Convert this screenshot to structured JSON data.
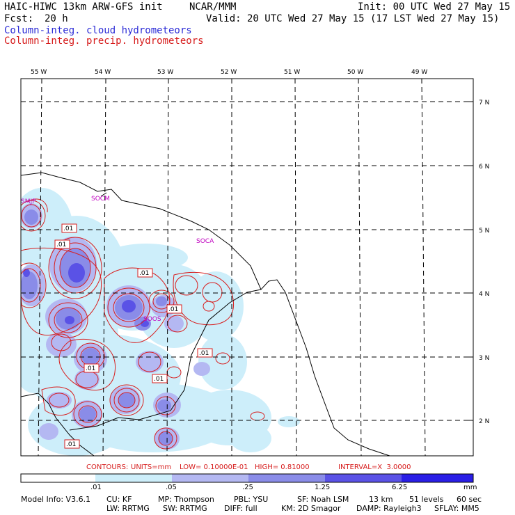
{
  "header": {
    "title_left": "HAIC-HIWC 13km ARW-GFS init",
    "org": "NCAR/MMM",
    "init": "Init: 00 UTC Wed 27 May 15",
    "fcst_label": "Fcst:",
    "fcst_value": "20 h",
    "valid": "Valid: 20 UTC Wed 27 May 15 (17 LST Wed 27 May 15)",
    "field1": "Column-integ. cloud hydrometeors",
    "field2": "Column-integ. precip. hydrometeors"
  },
  "map": {
    "lon_labels": [
      "55 W",
      "54 W",
      "53 W",
      "52 W",
      "51 W",
      "50 W",
      "49 W"
    ],
    "lat_labels": [
      "7 N",
      "6 N",
      "5 N",
      "4 N",
      "3 N",
      "2 N"
    ],
    "places": [
      "SMJP",
      "SOCM",
      "SOCA",
      "SOOS"
    ],
    "contour_labels": [
      ".01",
      ".01",
      ".01",
      ".01",
      ".01",
      ".01",
      ".01",
      ".01"
    ],
    "colors": {
      "light_cyan": "#cdeefa",
      "lavender": "#b4b8f2",
      "periwinkle": "#8a8ce8",
      "medium_blue": "#5a52e6",
      "deep_blue": "#2a1ee6",
      "contour_red": "#d81e1e",
      "grid": "#000000",
      "coast": "#000000"
    }
  },
  "contours_line": {
    "prefix": "CONTOURS:",
    "units": "UNITS=mm",
    "low": "LOW= 0.10000E-01",
    "high": "HIGH= 0.81000",
    "interval": "INTERVAL=X  3.0000"
  },
  "colorbar": {
    "ticks": [
      ".01",
      ".05",
      ".25",
      "1.25",
      "6.25"
    ],
    "unit": "mm",
    "colors": [
      "#ffffff",
      "#cdeefa",
      "#b4b8f2",
      "#8a8ce8",
      "#5a52e6",
      "#2a1ee6"
    ]
  },
  "footer": {
    "line1": [
      "Model Info: V3.6.1",
      "CU: KF",
      "MP: Thompson",
      "PBL: YSU",
      "SF: Noah LSM",
      "13 km",
      "51 levels",
      "60 sec"
    ],
    "line2": [
      "LW: RRTMG",
      "SW: RRTMG",
      "DIFF: full",
      "KM: 2D Smagor",
      "DAMP: Rayleigh3",
      "SFLAY: MM5"
    ]
  }
}
